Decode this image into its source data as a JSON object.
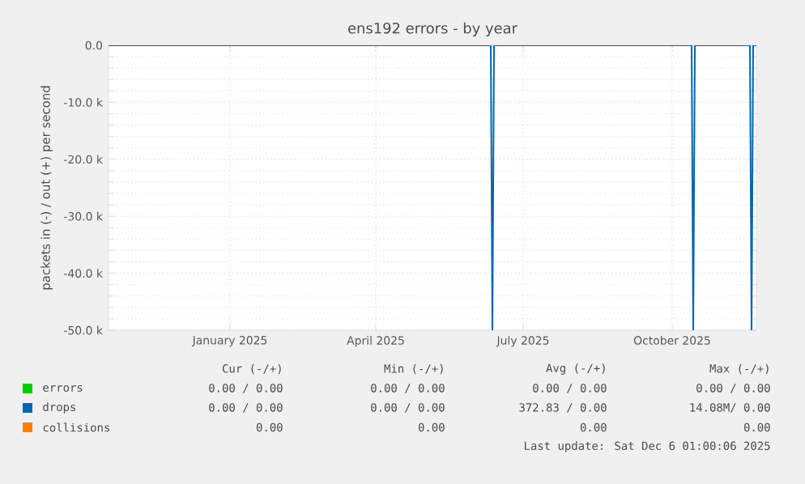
{
  "chart_data": {
    "type": "line",
    "title": "ens192 errors - by year",
    "ylabel": "packets in (-) / out (+) per second",
    "xlim": [
      "2024-11-01",
      "2025-12-06"
    ],
    "xticks": [
      {
        "value": "2025-01-15",
        "label": "January 2025"
      },
      {
        "value": "2025-04-15",
        "label": "April 2025"
      },
      {
        "value": "2025-07-15",
        "label": "July 2025"
      },
      {
        "value": "2025-10-15",
        "label": "October 2025"
      }
    ],
    "ylim": [
      -50000,
      0
    ],
    "yticks": [
      {
        "value": 0,
        "label": "0.0"
      },
      {
        "value": -10000,
        "label": "-10.0 k"
      },
      {
        "value": -20000,
        "label": "-20.0 k"
      },
      {
        "value": -30000,
        "label": "-30.0 k"
      },
      {
        "value": -40000,
        "label": "-40.0 k"
      },
      {
        "value": -50000,
        "label": "-50.0 k"
      }
    ],
    "grid": true,
    "legend": "bottom",
    "marker": "none",
    "line_style": "solid",
    "series": [
      {
        "name": "errors",
        "color": "#00cc00"
      },
      {
        "name": "drops",
        "color": "#0066b3",
        "x": [
          "2024-11-01",
          "2025-06-25",
          "2025-06-26",
          "2025-06-27",
          "2025-10-27",
          "2025-10-28",
          "2025-10-29",
          "2025-12-02",
          "2025-12-03",
          "2025-12-04",
          "2025-12-06"
        ],
        "values": [
          0,
          0,
          -50000,
          0,
          0,
          -50000,
          0,
          0,
          -50000,
          0,
          0
        ]
      },
      {
        "name": "collisions",
        "color": "#ff8000"
      }
    ],
    "annotations": [
      "Cur (-/+)",
      "Min (-/+)",
      "Avg (-/+)",
      "Max (-/+)",
      "0.00 / 0.00",
      "0.00 / 0.00",
      "0.00 / 0.00",
      "0.00 / 0.00",
      "0.00 / 0.00",
      "0.00 / 0.00",
      "372.83 / 0.00",
      "14.08M/ 0.00",
      "0.00",
      "0.00",
      "0.00",
      "0.00",
      "Last update: Sat Dec 6 01:00:06 2025"
    ]
  }
}
